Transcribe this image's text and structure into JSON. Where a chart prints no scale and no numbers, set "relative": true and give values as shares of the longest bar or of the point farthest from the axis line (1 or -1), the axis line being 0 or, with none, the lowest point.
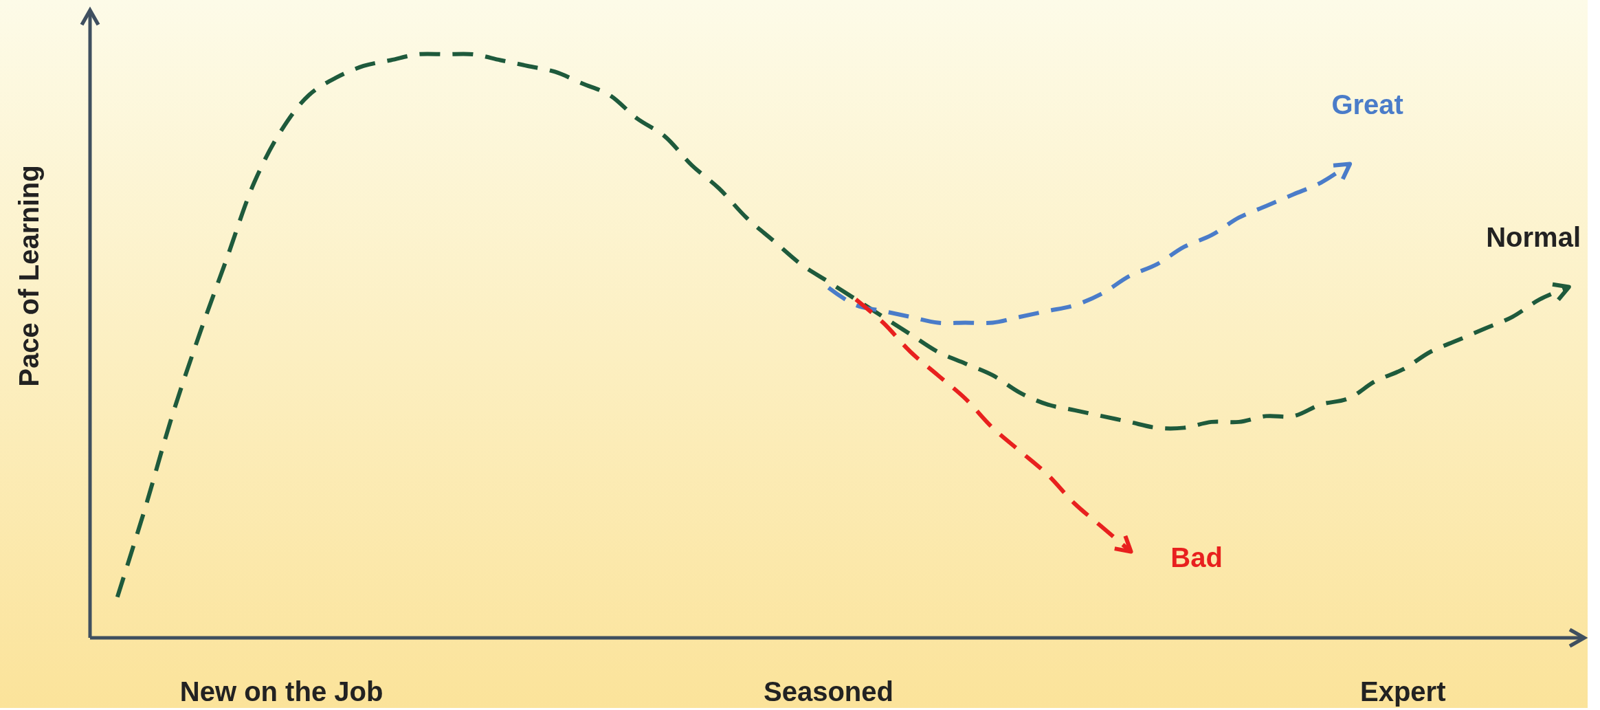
{
  "chart_data": {
    "type": "line",
    "ylabel": "Pace of Learning",
    "relative": true,
    "tick_labels": "x",
    "line_style": "dashed",
    "categories": [
      null,
      null,
      null,
      null,
      null,
      null,
      null,
      "New on the Job",
      null,
      null,
      null,
      null,
      null,
      null,
      null,
      null,
      null,
      null,
      null,
      null,
      null,
      null,
      null,
      null,
      null,
      null,
      null,
      "Seasoned",
      null,
      null,
      null,
      null,
      null,
      null,
      null,
      null,
      null,
      null,
      null,
      null,
      null,
      null,
      null,
      null,
      null,
      null,
      null,
      null,
      "Expert",
      null,
      null,
      null,
      null,
      null,
      null
    ],
    "series": [
      {
        "name": "Normal",
        "color": "#1e5a3c",
        "values": [
          null,
          0.07,
          0.22,
          0.38,
          0.52,
          0.65,
          0.78,
          0.87,
          0.93,
          0.96,
          0.98,
          0.99,
          1.0,
          1.0,
          1.0,
          0.99,
          0.98,
          0.97,
          0.95,
          0.93,
          0.89,
          0.86,
          0.81,
          0.77,
          0.72,
          0.68,
          0.64,
          0.61,
          0.58,
          0.55,
          0.52,
          0.49,
          0.47,
          0.45,
          0.42,
          0.4,
          0.39,
          0.38,
          0.37,
          0.36,
          0.36,
          0.37,
          0.37,
          0.38,
          0.38,
          0.4,
          0.41,
          0.44,
          0.46,
          0.49,
          0.51,
          0.53,
          0.55,
          0.58,
          0.6
        ]
      },
      {
        "name": "Great",
        "color": "#4a7cc9",
        "values": [
          null,
          null,
          null,
          null,
          null,
          null,
          null,
          null,
          null,
          null,
          null,
          null,
          null,
          null,
          null,
          null,
          null,
          null,
          null,
          null,
          null,
          null,
          null,
          null,
          null,
          null,
          null,
          0.6,
          0.57,
          0.56,
          0.55,
          0.54,
          0.54,
          0.54,
          0.55,
          0.56,
          0.57,
          0.59,
          0.62,
          0.64,
          0.67,
          0.69,
          0.72,
          0.74,
          0.76,
          0.78,
          0.81,
          null,
          null,
          null,
          null,
          null,
          null,
          null,
          null
        ]
      },
      {
        "name": "Bad",
        "color": "#e8201e",
        "values": [
          null,
          null,
          null,
          null,
          null,
          null,
          null,
          null,
          null,
          null,
          null,
          null,
          null,
          null,
          null,
          null,
          null,
          null,
          null,
          null,
          null,
          null,
          null,
          null,
          null,
          null,
          null,
          null,
          0.58,
          0.54,
          0.49,
          0.45,
          0.41,
          0.36,
          0.32,
          0.28,
          0.23,
          0.19,
          0.15,
          null,
          null,
          null,
          null,
          null,
          null,
          null,
          null,
          null,
          null,
          null,
          null,
          null,
          null,
          null,
          null
        ]
      }
    ]
  }
}
